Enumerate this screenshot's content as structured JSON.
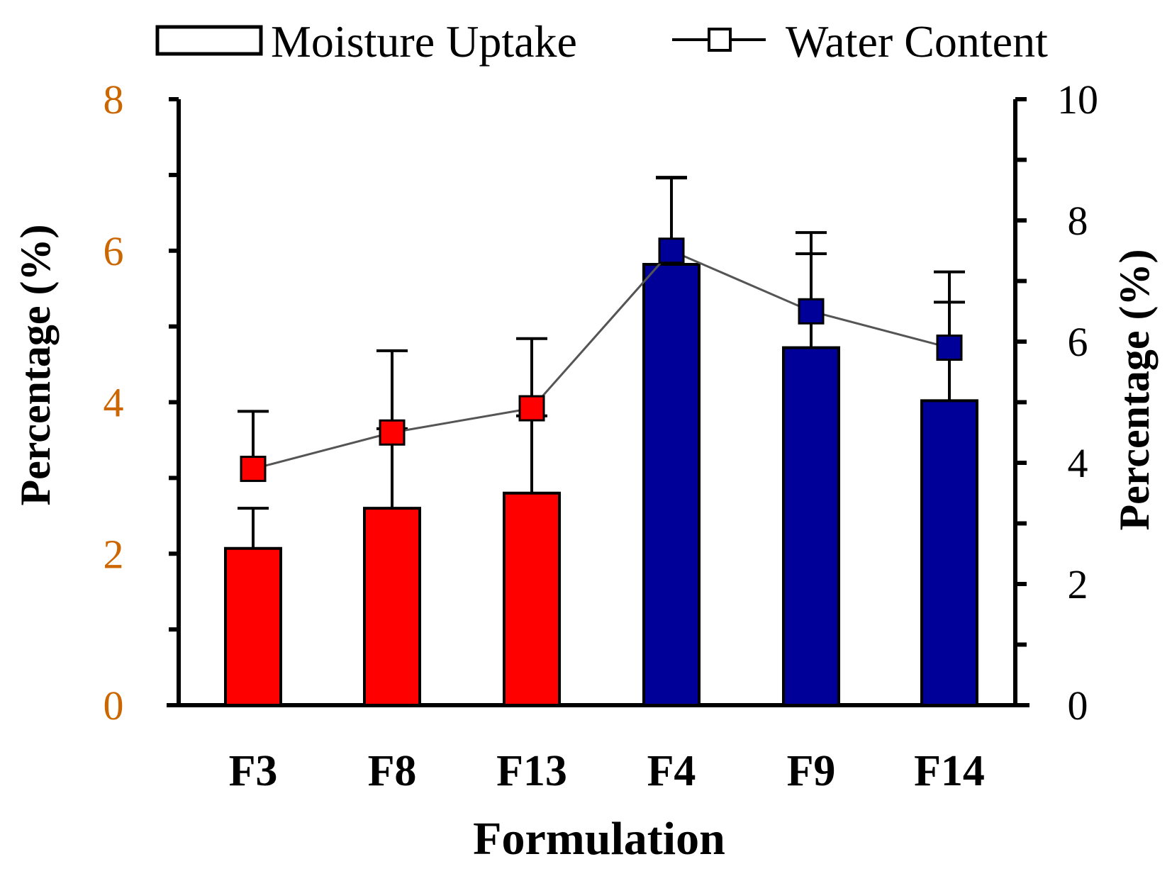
{
  "chart_data": {
    "type": "bar",
    "xlabel": "Formulation",
    "ylabel": "Percentage (%)",
    "y2label": "Percentage (%)",
    "categories": [
      "F3",
      "F8",
      "F13",
      "F4",
      "F9",
      "F14"
    ],
    "ylim": [
      0,
      8
    ],
    "y2lim": [
      0,
      10
    ],
    "yticks": [
      "0",
      "2",
      "4",
      "6",
      "8"
    ],
    "y2ticks": [
      "0",
      "2",
      "4",
      "6",
      "8",
      "10"
    ],
    "legend": {
      "position": "top",
      "bar_label": "Moisture Uptake",
      "line_label": "Water Content"
    },
    "colors": {
      "group1": "#ff0000",
      "group2": "#000099",
      "tick_left": "#cc6600",
      "tick_right": "#000000",
      "line": "#555555"
    },
    "bar_colors": [
      "#ff0000",
      "#ff0000",
      "#ff0000",
      "#000099",
      "#000099",
      "#000099"
    ],
    "series": [
      {
        "name": "Moisture Uptake",
        "kind": "bar",
        "axis": "left",
        "values": [
          2.07,
          2.6,
          2.8,
          5.82,
          4.72,
          4.02
        ],
        "errors": [
          0.53,
          1.05,
          1.02,
          1.15,
          1.52,
          1.7
        ]
      },
      {
        "name": "Water Content",
        "kind": "line",
        "axis": "right",
        "values": [
          3.9,
          4.5,
          4.9,
          7.5,
          6.5,
          5.9
        ],
        "errors": [
          0.95,
          1.35,
          1.15,
          1.2,
          0.95,
          0.75
        ]
      }
    ]
  }
}
